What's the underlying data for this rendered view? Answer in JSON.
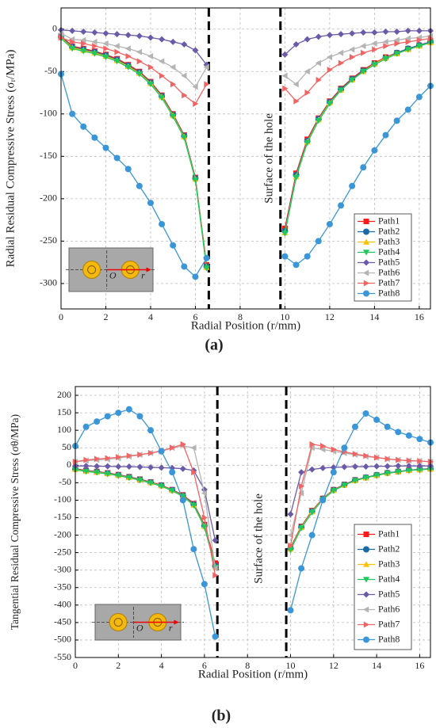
{
  "chart_data": [
    {
      "type": "line",
      "panel_label": "(a)",
      "xlabel": "Radial Position (r/mm)",
      "ylabel": "Radial Residual Compressive Stress (σᵣ/MPa)",
      "annotation": "Surface of the hole",
      "inset_labels": [
        "O",
        "r"
      ],
      "xlim": [
        0,
        16.5
      ],
      "ylim": [
        -330,
        25
      ],
      "xticks": [
        0,
        2,
        4,
        6,
        8,
        10,
        12,
        14,
        16
      ],
      "yticks": [
        0,
        -50,
        -100,
        -150,
        -200,
        -250,
        -300
      ],
      "grid": true,
      "legend": "lower right",
      "dashed_lines": [
        6.6,
        9.8
      ],
      "x": [
        0,
        0.5,
        1,
        1.5,
        2,
        2.5,
        3,
        3.5,
        4,
        4.5,
        5,
        5.5,
        6,
        6.5,
        10,
        10.5,
        11,
        11.5,
        12,
        12.5,
        13,
        13.5,
        14,
        14.5,
        15,
        15.5,
        16,
        16.5
      ],
      "series": [
        {
          "name": "Path1",
          "color": "#ff1a1a",
          "values": [
            -8,
            -20,
            -23,
            -26,
            -30,
            -35,
            -42,
            -50,
            -62,
            -78,
            -100,
            -125,
            -175,
            -278,
            -235,
            -170,
            -130,
            -105,
            -85,
            -70,
            -58,
            -48,
            -40,
            -33,
            -28,
            -23,
            -19,
            -15
          ]
        },
        {
          "name": "Path2",
          "color": "#1a6aa8",
          "values": [
            -9,
            -21,
            -24,
            -27,
            -31,
            -36,
            -43,
            -51,
            -63,
            -79,
            -101,
            -126,
            -176,
            -280,
            -238,
            -172,
            -132,
            -106,
            -86,
            -71,
            -59,
            -49,
            -41,
            -34,
            -28,
            -23,
            -19,
            -15
          ]
        },
        {
          "name": "Path3",
          "color": "#ffc000",
          "values": [
            -10,
            -22,
            -25,
            -28,
            -32,
            -37,
            -44,
            -52,
            -64,
            -80,
            -102,
            -127,
            -177,
            -281,
            -240,
            -174,
            -133,
            -107,
            -87,
            -72,
            -60,
            -50,
            -41,
            -34,
            -29,
            -24,
            -20,
            -16
          ]
        },
        {
          "name": "Path4",
          "color": "#1ec85a",
          "values": [
            -11,
            -23,
            -26,
            -29,
            -33,
            -38,
            -45,
            -53,
            -65,
            -81,
            -103,
            -128,
            -178,
            -282,
            -241,
            -175,
            -134,
            -108,
            -88,
            -72,
            -60,
            -50,
            -42,
            -35,
            -29,
            -24,
            -20,
            -16
          ]
        },
        {
          "name": "Path5",
          "color": "#6a5aa8",
          "values": [
            -1,
            -2,
            -3,
            -4,
            -5,
            -6,
            -7,
            -8,
            -10,
            -12,
            -15,
            -18,
            -25,
            -42,
            -30,
            -18,
            -12,
            -9,
            -7,
            -6,
            -5,
            -4,
            -4,
            -3,
            -3,
            -2,
            -2,
            -2
          ]
        },
        {
          "name": "Path6",
          "color": "#b4b4b4",
          "values": [
            -5,
            -12,
            -13,
            -15,
            -17,
            -20,
            -23,
            -27,
            -32,
            -38,
            -45,
            -55,
            -68,
            -45,
            -55,
            -65,
            -50,
            -40,
            -33,
            -28,
            -24,
            -20,
            -17,
            -15,
            -13,
            -11,
            -10,
            -8
          ]
        },
        {
          "name": "Path7",
          "color": "#f26464",
          "values": [
            -10,
            -15,
            -17,
            -20,
            -23,
            -27,
            -32,
            -38,
            -45,
            -55,
            -65,
            -78,
            -88,
            -65,
            -70,
            -85,
            -75,
            -60,
            -48,
            -40,
            -33,
            -28,
            -24,
            -20,
            -17,
            -15,
            -13,
            -11
          ]
        },
        {
          "name": "Path8",
          "color": "#3a96d6",
          "values": [
            -53,
            -100,
            -115,
            -128,
            -140,
            -152,
            -165,
            -185,
            -205,
            -230,
            -255,
            -280,
            -292,
            -270,
            -268,
            -278,
            -268,
            -250,
            -230,
            -208,
            -185,
            -163,
            -143,
            -125,
            -108,
            -95,
            -80,
            -67
          ]
        }
      ]
    },
    {
      "type": "line",
      "panel_label": "(b)",
      "xlabel": "Radial Position (r/mm)",
      "ylabel": "Tangential Residual Compressive Stress (σθ/MPa)",
      "annotation": "Surface of the hole",
      "inset_labels": [
        "O",
        "r"
      ],
      "xlim": [
        0,
        16.5
      ],
      "ylim": [
        -550,
        225
      ],
      "xticks": [
        0,
        2,
        4,
        6,
        8,
        10,
        12,
        14,
        16
      ],
      "yticks": [
        200,
        150,
        100,
        50,
        0,
        -50,
        -100,
        -150,
        -200,
        -250,
        -300,
        -350,
        -400,
        -450,
        -500,
        -550
      ],
      "grid": true,
      "legend": "lower right",
      "dashed_lines": [
        6.6,
        9.8
      ],
      "x": [
        0,
        0.5,
        1,
        1.5,
        2,
        2.5,
        3,
        3.5,
        4,
        4.5,
        5,
        5.5,
        6,
        6.5,
        10,
        10.5,
        11,
        11.5,
        12,
        12.5,
        13,
        13.5,
        14,
        14.5,
        15,
        15.5,
        16,
        16.5
      ],
      "series": [
        {
          "name": "Path1",
          "color": "#ff1a1a",
          "values": [
            -10,
            -15,
            -18,
            -22,
            -27,
            -33,
            -40,
            -48,
            -57,
            -70,
            -85,
            -110,
            -170,
            -280,
            -235,
            -175,
            -130,
            -95,
            -70,
            -55,
            -42,
            -35,
            -28,
            -22,
            -18,
            -14,
            -12,
            -10
          ]
        },
        {
          "name": "Path2",
          "color": "#1a6aa8",
          "values": [
            -11,
            -16,
            -19,
            -23,
            -28,
            -34,
            -41,
            -49,
            -58,
            -71,
            -87,
            -112,
            -173,
            -288,
            -238,
            -177,
            -132,
            -96,
            -71,
            -56,
            -43,
            -35,
            -28,
            -22,
            -18,
            -14,
            -12,
            -10
          ]
        },
        {
          "name": "Path3",
          "color": "#ffc000",
          "values": [
            -12,
            -17,
            -20,
            -24,
            -29,
            -35,
            -42,
            -50,
            -59,
            -72,
            -88,
            -114,
            -175,
            -290,
            -240,
            -178,
            -133,
            -97,
            -72,
            -57,
            -44,
            -36,
            -29,
            -23,
            -19,
            -15,
            -13,
            -11
          ]
        },
        {
          "name": "Path4",
          "color": "#1ec85a",
          "values": [
            -13,
            -18,
            -21,
            -25,
            -30,
            -36,
            -43,
            -51,
            -60,
            -73,
            -89,
            -115,
            -177,
            -292,
            -242,
            -180,
            -135,
            -98,
            -73,
            -57,
            -44,
            -36,
            -29,
            -23,
            -19,
            -15,
            -13,
            -11
          ]
        },
        {
          "name": "Path5",
          "color": "#6a5aa8",
          "values": [
            -2,
            -2,
            -3,
            -3,
            -4,
            -4,
            -5,
            -6,
            -7,
            -8,
            -10,
            -15,
            -70,
            -215,
            -140,
            -20,
            -12,
            -8,
            -6,
            -5,
            -4,
            -4,
            -3,
            -3,
            -2,
            -2,
            -2,
            -2
          ]
        },
        {
          "name": "Path6",
          "color": "#b4b4b4",
          "values": [
            10,
            13,
            15,
            17,
            20,
            25,
            30,
            35,
            42,
            50,
            55,
            50,
            -80,
            -295,
            -200,
            -80,
            50,
            45,
            40,
            35,
            30,
            25,
            22,
            18,
            15,
            13,
            12,
            10
          ]
        },
        {
          "name": "Path7",
          "color": "#f26464",
          "values": [
            10,
            15,
            18,
            20,
            23,
            27,
            30,
            35,
            40,
            50,
            60,
            -20,
            -150,
            -315,
            -230,
            -60,
            60,
            55,
            45,
            38,
            32,
            27,
            22,
            18,
            15,
            13,
            12,
            10
          ]
        },
        {
          "name": "Path8",
          "color": "#3a96d6",
          "values": [
            55,
            110,
            125,
            140,
            150,
            160,
            140,
            100,
            40,
            -20,
            -100,
            -240,
            -340,
            -490,
            -415,
            -295,
            -200,
            -100,
            -20,
            50,
            110,
            148,
            130,
            110,
            95,
            85,
            75,
            65
          ]
        }
      ]
    }
  ]
}
